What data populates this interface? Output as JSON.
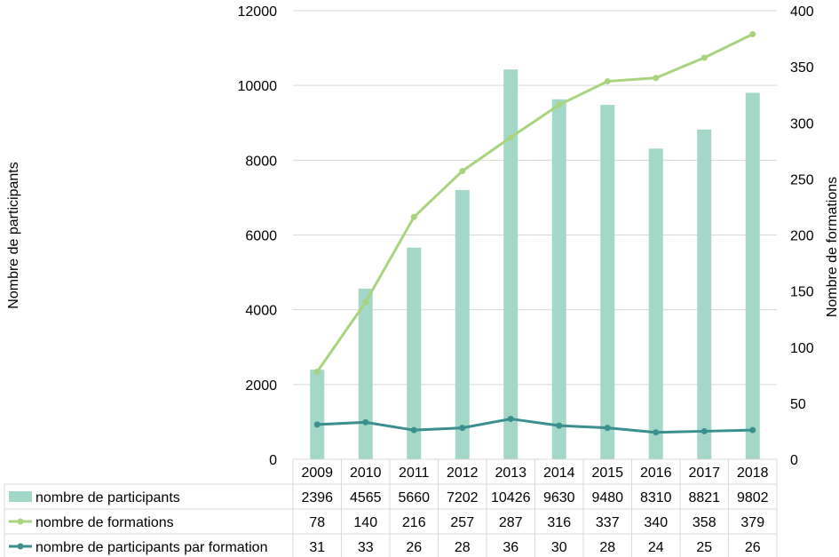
{
  "chart_data": {
    "type": "bar",
    "categories": [
      "2009",
      "2010",
      "2011",
      "2012",
      "2013",
      "2014",
      "2015",
      "2016",
      "2017",
      "2018"
    ],
    "ylabel": "Nombre de participants",
    "ylabel_right": "Nombre de formations",
    "ylim": [
      0,
      12000
    ],
    "ylim_right": [
      0,
      400
    ],
    "y_ticks": [
      "0",
      "2000",
      "4000",
      "6000",
      "8000",
      "10000",
      "12000"
    ],
    "y_ticks_right": [
      "0",
      "50",
      "100",
      "150",
      "200",
      "250",
      "300",
      "350",
      "400"
    ],
    "grid": true,
    "legend": "data-table-bottom",
    "series": [
      {
        "name": "nombre de participants",
        "type": "bar",
        "axis": "left",
        "color": "#a3d7c7",
        "values": [
          2396,
          4565,
          5660,
          7202,
          10426,
          9630,
          9480,
          8310,
          8821,
          9802
        ]
      },
      {
        "name": "nombre de formations",
        "type": "line",
        "axis": "right",
        "color": "#a9d47f",
        "values": [
          78,
          140,
          216,
          257,
          287,
          316,
          337,
          340,
          358,
          379
        ]
      },
      {
        "name": "nombre de participants par formation",
        "type": "line",
        "axis": "right",
        "color": "#3a8f8f",
        "values": [
          31,
          33,
          26,
          28,
          36,
          30,
          28,
          24,
          25,
          26
        ]
      }
    ]
  }
}
